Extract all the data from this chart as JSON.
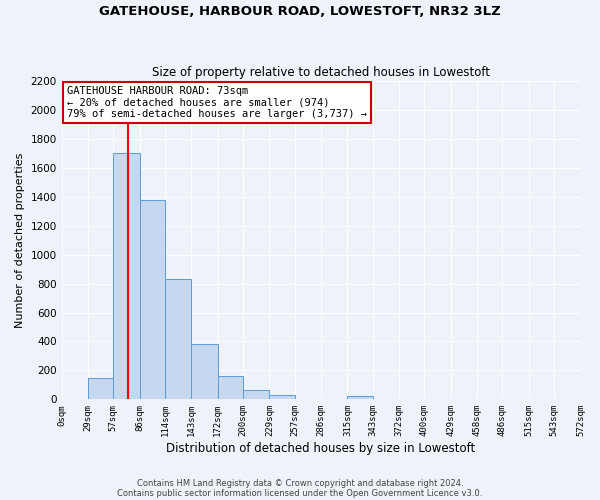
{
  "title": "GATEHOUSE, HARBOUR ROAD, LOWESTOFT, NR32 3LZ",
  "subtitle": "Size of property relative to detached houses in Lowestoft",
  "xlabel": "Distribution of detached houses by size in Lowestoft",
  "ylabel": "Number of detached properties",
  "bar_color": "#c5d8f0",
  "bar_edge_color": "#5b9bd5",
  "bin_edges": [
    0,
    29,
    57,
    86,
    114,
    143,
    172,
    200,
    229,
    257,
    286,
    315,
    343,
    372,
    400,
    429,
    458,
    486,
    515,
    543,
    572
  ],
  "bin_labels": [
    "0sqm",
    "29sqm",
    "57sqm",
    "86sqm",
    "114sqm",
    "143sqm",
    "172sqm",
    "200sqm",
    "229sqm",
    "257sqm",
    "286sqm",
    "315sqm",
    "343sqm",
    "372sqm",
    "400sqm",
    "429sqm",
    "458sqm",
    "486sqm",
    "515sqm",
    "543sqm",
    "572sqm"
  ],
  "bar_heights": [
    0,
    150,
    1700,
    1380,
    830,
    380,
    160,
    65,
    30,
    0,
    0,
    20,
    0,
    0,
    0,
    0,
    0,
    0,
    0,
    0
  ],
  "red_line_x": 73,
  "ylim": [
    0,
    2200
  ],
  "yticks": [
    0,
    200,
    400,
    600,
    800,
    1000,
    1200,
    1400,
    1600,
    1800,
    2000,
    2200
  ],
  "annotation_line1": "GATEHOUSE HARBOUR ROAD: 73sqm",
  "annotation_line2": "← 20% of detached houses are smaller (974)",
  "annotation_line3": "79% of semi-detached houses are larger (3,737) →",
  "annotation_box_color": "#ffffff",
  "annotation_box_edge": "#cc0000",
  "footer_line1": "Contains HM Land Registry data © Crown copyright and database right 2024.",
  "footer_line2": "Contains public sector information licensed under the Open Government Licence v3.0.",
  "background_color": "#eef2f9"
}
